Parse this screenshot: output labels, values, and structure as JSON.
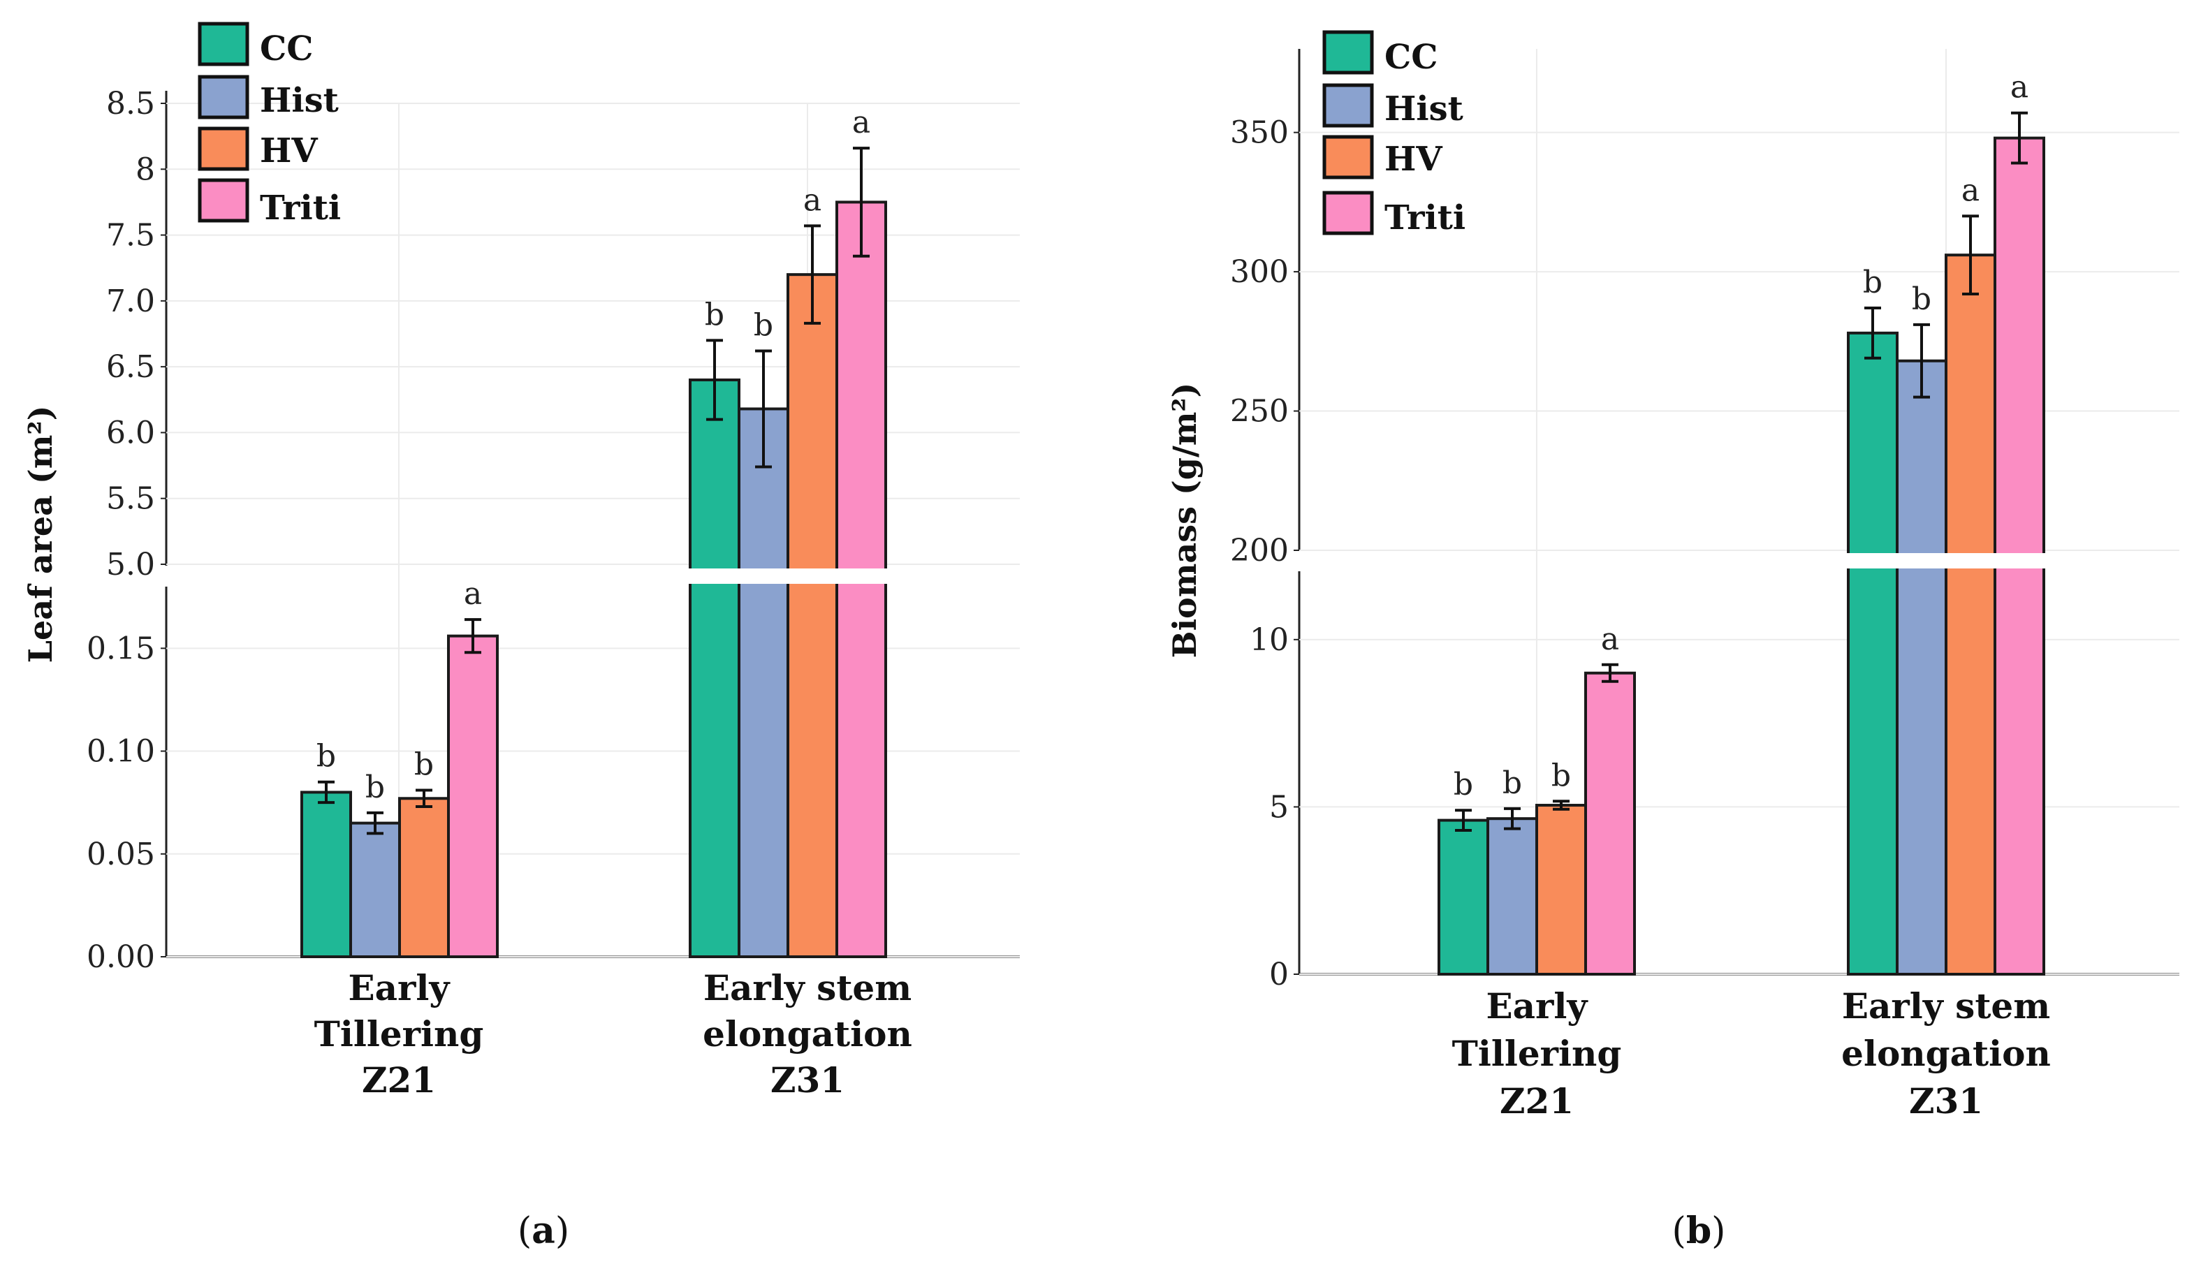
{
  "colors": {
    "CC": "#1fb896",
    "Hist": "#8aa2cf",
    "HV": "#f98c5a",
    "Triti": "#fb8dc3",
    "grid": "#ebebeb",
    "axis": "#222222"
  },
  "chart_data": [
    {
      "type": "bar",
      "panel_label": "a",
      "ylabel": "Leaf area (m²)",
      "categories": [
        {
          "line1": "Early",
          "line2": "Tillering",
          "line3": "Z21"
        },
        {
          "line1": "Early stem",
          "line2": "elongation",
          "line3": "Z31"
        }
      ],
      "series": [
        {
          "name": "CC",
          "values": [
            0.08,
            6.4
          ],
          "errors": [
            0.005,
            0.3
          ],
          "letters": [
            "b",
            "b"
          ]
        },
        {
          "name": "Hist",
          "values": [
            0.065,
            6.18
          ],
          "errors": [
            0.005,
            0.44
          ],
          "letters": [
            "b",
            "b"
          ]
        },
        {
          "name": "HV",
          "values": [
            0.077,
            7.2
          ],
          "errors": [
            0.004,
            0.37
          ],
          "letters": [
            "b",
            "a"
          ]
        },
        {
          "name": "Triti",
          "values": [
            0.156,
            7.75
          ],
          "errors": [
            0.008,
            0.41
          ],
          "letters": [
            "a",
            "a"
          ]
        }
      ],
      "axis_break": true,
      "lower_ylim": [
        0,
        0.18
      ],
      "lower_ticks": [
        "0.00",
        "0.05",
        "0.10",
        "0.15"
      ],
      "upper_ylim": [
        5.0,
        8.5
      ],
      "upper_ticks": [
        "5.0",
        "5.5",
        "6.0",
        "6.5",
        "7.0",
        "7.5",
        "8",
        "8.5"
      ],
      "legend_position": "top-left"
    },
    {
      "type": "bar",
      "panel_label": "b",
      "ylabel": "Biomass (g/m²)",
      "categories": [
        {
          "line1": "Early",
          "line2": "Tillering",
          "line3": "Z21"
        },
        {
          "line1": "Early stem",
          "line2": "elongation",
          "line3": "Z31"
        }
      ],
      "series": [
        {
          "name": "CC",
          "values": [
            4.6,
            278
          ],
          "errors": [
            0.3,
            9
          ],
          "letters": [
            "b",
            "b"
          ]
        },
        {
          "name": "Hist",
          "values": [
            4.65,
            268
          ],
          "errors": [
            0.3,
            13
          ],
          "letters": [
            "b",
            "b"
          ]
        },
        {
          "name": "HV",
          "values": [
            5.05,
            306
          ],
          "errors": [
            0.12,
            14
          ],
          "letters": [
            "b",
            "a"
          ]
        },
        {
          "name": "Triti",
          "values": [
            9.0,
            348
          ],
          "errors": [
            0.25,
            9
          ],
          "letters": [
            "a",
            "a"
          ]
        }
      ],
      "axis_break": true,
      "lower_ylim": [
        0,
        12
      ],
      "lower_ticks": [
        "0",
        "5",
        "10"
      ],
      "upper_ylim": [
        200,
        380
      ],
      "upper_ticks": [
        "200",
        "250",
        "300",
        "350"
      ],
      "legend_position": "top-left"
    }
  ]
}
